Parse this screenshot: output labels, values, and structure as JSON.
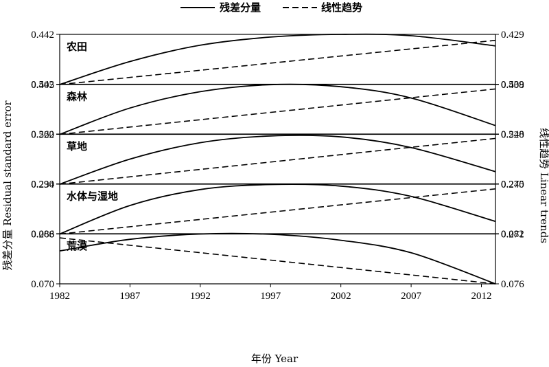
{
  "chart_data": {
    "type": "line",
    "legend": {
      "placement": "top",
      "items": [
        {
          "label": "残差分量",
          "style": "solid"
        },
        {
          "label": "线性趋势",
          "style": "dashed"
        }
      ]
    },
    "xlabel": "年份 Year",
    "ylabel_left": "残差分量 Residual standard error",
    "ylabel_right": "线性趋势 Linear trends",
    "xlim": [
      1982,
      2013
    ],
    "x_ticks": [
      "1982",
      "1987",
      "1992",
      "1997",
      "2002",
      "2007",
      "2012"
    ],
    "panels": [
      {
        "label": "农田",
        "left_ylim": [
          0.405,
          0.442
        ],
        "left_ticks": [
          "0.442",
          "0.405"
        ],
        "right_ylim": [
          0.408,
          0.429
        ],
        "right_ticks": [
          "0.429",
          "0.408"
        ],
        "residual": {
          "x": [
            1982,
            1987,
            1992,
            1997,
            2002,
            2007,
            2013
          ],
          "y": [
            0.405,
            0.422,
            0.434,
            0.44,
            0.442,
            0.441,
            0.4335
          ]
        },
        "trend": {
          "x": [
            1982,
            2013
          ],
          "y": [
            0.408,
            0.4265
          ]
        }
      },
      {
        "label": "森林",
        "left_ylim": [
          0.522,
          0.542
        ],
        "left_ticks": [
          "0.542",
          "0.522"
        ],
        "right_ylim": [
          0.52,
          0.539
        ],
        "right_ticks": [
          "0.539",
          "0.520"
        ],
        "residual": {
          "x": [
            1982,
            1987,
            1992,
            1997,
            2002,
            2007,
            2013
          ],
          "y": [
            0.522,
            0.5325,
            0.539,
            0.5418,
            0.541,
            0.5365,
            0.5255
          ]
        },
        "trend": {
          "x": [
            1982,
            2013
          ],
          "y": [
            0.52,
            0.5372
          ]
        }
      },
      {
        "label": "草地",
        "left_ylim": [
          0.234,
          0.26
        ],
        "left_ticks": [
          "0.260",
          "0.234"
        ],
        "right_ylim": [
          0.24,
          0.248
        ],
        "right_ticks": [
          "0.248",
          "0.240"
        ],
        "residual": {
          "x": [
            1982,
            1987,
            1992,
            1997,
            2002,
            2007,
            2013
          ],
          "y": [
            0.234,
            0.247,
            0.2555,
            0.259,
            0.2585,
            0.253,
            0.2405
          ]
        },
        "trend": {
          "x": [
            1982,
            2013
          ],
          "y": [
            0.24,
            0.2473
          ]
        }
      },
      {
        "label": "水体与湿地",
        "left_ylim": [
          0.268,
          0.29
        ],
        "left_ticks": [
          "0.290",
          "0.268"
        ],
        "right_ylim": [
          0.271,
          0.275
        ],
        "right_ticks": [
          "0.275",
          "0.271"
        ],
        "residual": {
          "x": [
            1982,
            1987,
            1992,
            1997,
            2002,
            2007,
            2013
          ],
          "y": [
            0.268,
            0.2805,
            0.2875,
            0.2897,
            0.289,
            0.2845,
            0.2735
          ]
        },
        "trend": {
          "x": [
            1982,
            2013
          ],
          "y": [
            0.271,
            0.2746
          ]
        }
      },
      {
        "label": "荒漠",
        "left_ylim": [
          0.07,
          0.086
        ],
        "left_ticks": [
          "0.086",
          "0.070"
        ],
        "right_ylim": [
          0.076,
          0.082
        ],
        "right_ticks": [
          "0.082",
          "0.076"
        ],
        "residual": {
          "x": [
            1982,
            1987,
            1992,
            1997,
            2002,
            2007,
            2013
          ],
          "y": [
            0.0805,
            0.0842,
            0.0859,
            0.0858,
            0.0839,
            0.0799,
            0.07
          ]
        },
        "trend": {
          "x": [
            1982,
            2013
          ],
          "y": [
            0.0815,
            0.076
          ]
        }
      }
    ]
  }
}
